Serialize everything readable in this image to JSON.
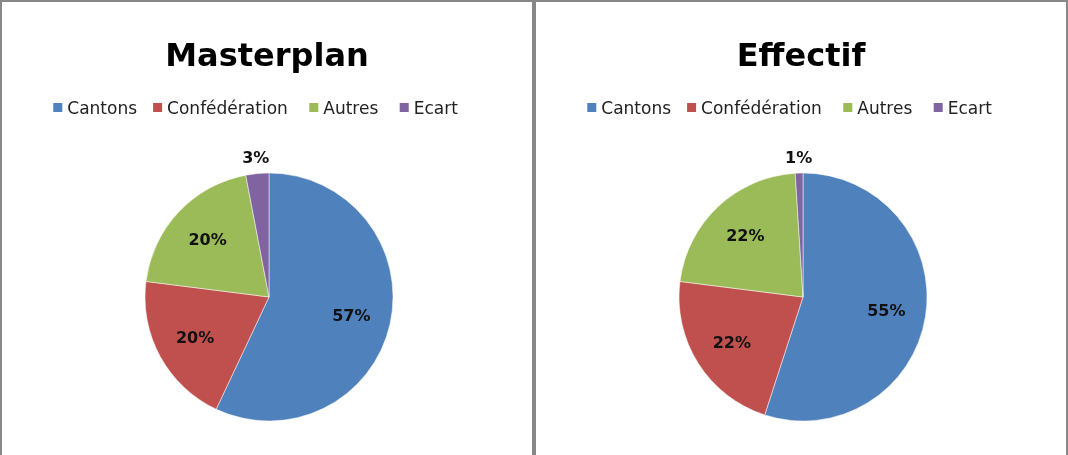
{
  "chart_data": [
    {
      "type": "pie",
      "title": "Masterplan",
      "categories": [
        "Cantons",
        "Confédération",
        "Autres",
        "Ecart"
      ],
      "values": [
        57,
        20,
        20,
        3
      ],
      "colors": [
        "#4f81bd",
        "#c0504d",
        "#9bbb59",
        "#8064a2"
      ],
      "value_labels": [
        "57%",
        "20%",
        "20%",
        "3%"
      ],
      "legend": "top"
    },
    {
      "type": "pie",
      "title": "Effectif",
      "categories": [
        "Cantons",
        "Confédération",
        "Autres",
        "Ecart"
      ],
      "values": [
        55,
        22,
        22,
        1
      ],
      "colors": [
        "#4f81bd",
        "#c0504d",
        "#9bbb59",
        "#8064a2"
      ],
      "value_labels": [
        "55%",
        "22%",
        "22%",
        "1%"
      ],
      "legend": "top"
    }
  ]
}
